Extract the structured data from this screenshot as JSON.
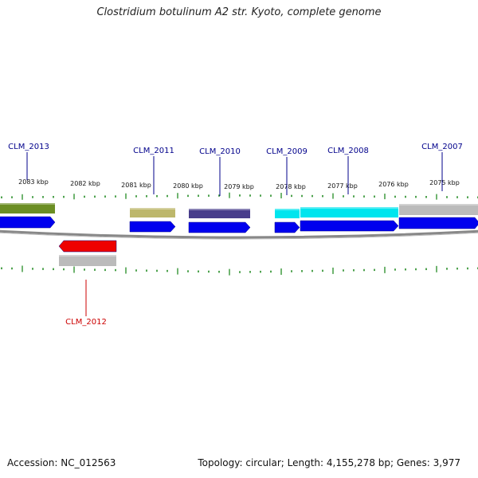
{
  "header": {
    "title": "Clostridium botulinum A2 str. Kyoto, complete genome"
  },
  "footer": {
    "accession": "Accession: NC_012563",
    "summary": "Topology: circular; Length: 4,155,278 bp; Genes: 3,977"
  },
  "map": {
    "kbp_labels": [
      "2083 kbp",
      "2082 kbp",
      "2081 kbp",
      "2080 kbp",
      "2079 kbp",
      "2078 kbp",
      "2077 kbp",
      "2076 kbp",
      "2075 kbp"
    ],
    "genes": [
      {
        "name": "CLM_2013",
        "strand": "+",
        "color": "#00008B"
      },
      {
        "name": "CLM_2012",
        "strand": "-",
        "color": "#CC0000"
      },
      {
        "name": "CLM_2011",
        "strand": "+",
        "color": "#00008B"
      },
      {
        "name": "CLM_2010",
        "strand": "+",
        "color": "#00008B"
      },
      {
        "name": "CLM_2009",
        "strand": "+",
        "color": "#00008B"
      },
      {
        "name": "CLM_2008",
        "strand": "+",
        "color": "#00008B"
      },
      {
        "name": "CLM_2007",
        "strand": "+",
        "color": "#00008B"
      }
    ],
    "colors": {
      "cds_forward": "#0000EE",
      "cds_reverse": "#EE0000",
      "backbone": "#888888",
      "ticks": "#228B22",
      "cog_olive": "#6B8E23",
      "cog_khaki": "#BDB76B",
      "cog_slate": "#483D8B",
      "cog_cyan": "#00E5EE",
      "cog_gray": "#BBBBBB"
    }
  }
}
